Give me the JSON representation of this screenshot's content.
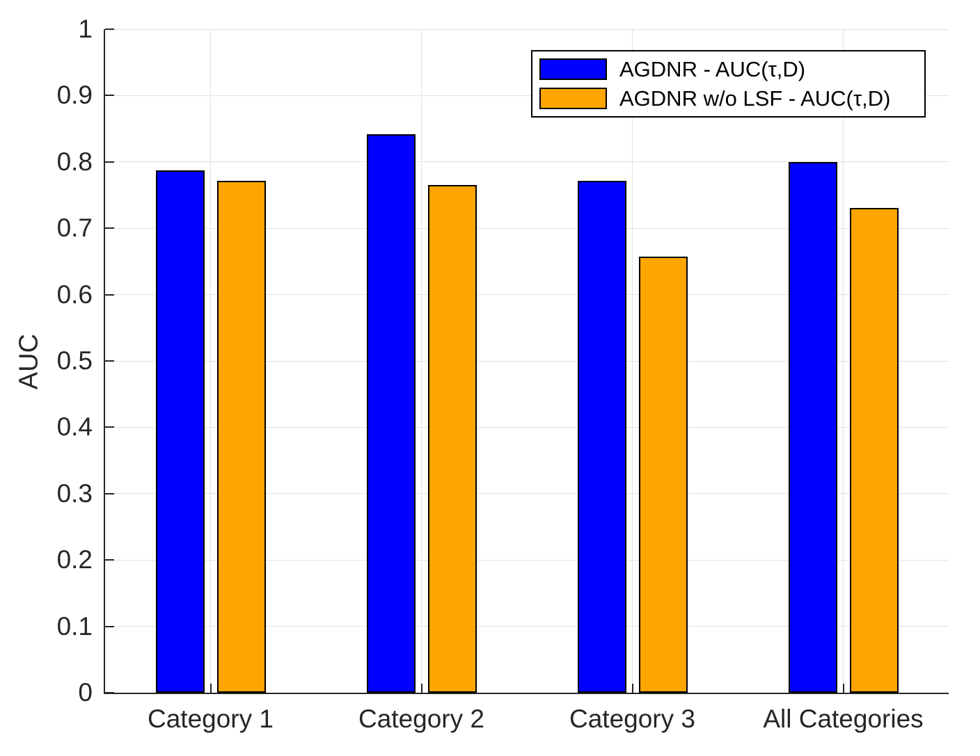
{
  "figure": {
    "background": "#ffffff",
    "axis_color": "#262626",
    "grid_color": "#e2e2e2",
    "bar_edge_color": "#000000",
    "text_color": "#262626"
  },
  "legend": {
    "position": "top-right",
    "entries": [
      {
        "label": "AGDNR - AUC(τ,D)",
        "color": "#0000ff"
      },
      {
        "label": "AGDNR w/o LSF - AUC(τ,D)",
        "color": "#ffa500"
      }
    ]
  },
  "chart_data": {
    "type": "bar",
    "title": "",
    "xlabel": "",
    "ylabel": "AUC",
    "categories": [
      "Category 1",
      "Category 2",
      "Category 3",
      "All Categories"
    ],
    "series": [
      {
        "name": "AGDNR - AUC(τ,D)",
        "color": "#0000ff",
        "values": [
          0.787,
          0.842,
          0.772,
          0.8
        ]
      },
      {
        "name": "AGDNR w/o LSF - AUC(τ,D)",
        "color": "#ffa500",
        "values": [
          0.772,
          0.765,
          0.657,
          0.731
        ]
      }
    ],
    "ylim": [
      0,
      1
    ],
    "yticks": [
      0,
      0.1,
      0.2,
      0.3,
      0.4,
      0.5,
      0.6,
      0.7,
      0.8,
      0.9,
      1
    ],
    "ytick_labels": [
      "0",
      "0.1",
      "0.2",
      "0.3",
      "0.4",
      "0.5",
      "0.6",
      "0.7",
      "0.8",
      "0.9",
      "1"
    ],
    "grid": true,
    "legend_position": "top-right"
  }
}
